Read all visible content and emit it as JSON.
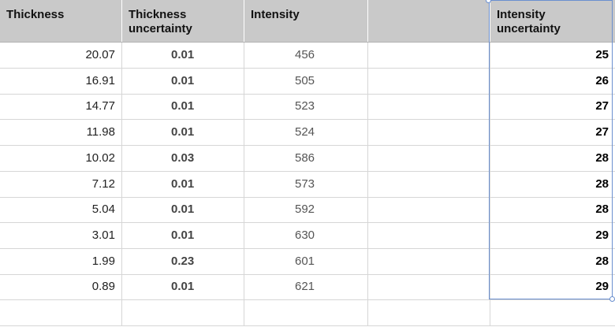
{
  "headers": [
    "Thickness",
    "Thickness\nuncertainty",
    "Intensity",
    "",
    "Intensity\nuncertainty"
  ],
  "rows": [
    {
      "thickness": "20.07",
      "thickness_unc": "0.01",
      "intensity": "456",
      "blank": "",
      "intensity_unc": "25"
    },
    {
      "thickness": "16.91",
      "thickness_unc": "0.01",
      "intensity": "505",
      "blank": "",
      "intensity_unc": "26"
    },
    {
      "thickness": "14.77",
      "thickness_unc": "0.01",
      "intensity": "523",
      "blank": "",
      "intensity_unc": "27"
    },
    {
      "thickness": "11.98",
      "thickness_unc": "0.01",
      "intensity": "524",
      "blank": "",
      "intensity_unc": "27"
    },
    {
      "thickness": "10.02",
      "thickness_unc": "0.03",
      "intensity": "586",
      "blank": "",
      "intensity_unc": "28"
    },
    {
      "thickness": "7.12",
      "thickness_unc": "0.01",
      "intensity": "573",
      "blank": "",
      "intensity_unc": "28"
    },
    {
      "thickness": "5.04",
      "thickness_unc": "0.01",
      "intensity": "592",
      "blank": "",
      "intensity_unc": "28"
    },
    {
      "thickness": "3.01",
      "thickness_unc": "0.01",
      "intensity": "630",
      "blank": "",
      "intensity_unc": "29"
    },
    {
      "thickness": "1.99",
      "thickness_unc": "0.23",
      "intensity": "601",
      "blank": "",
      "intensity_unc": "28"
    },
    {
      "thickness": "0.89",
      "thickness_unc": "0.01",
      "intensity": "621",
      "blank": "",
      "intensity_unc": "29"
    },
    {
      "thickness": "",
      "thickness_unc": "",
      "intensity": "",
      "blank": "",
      "intensity_unc": ""
    }
  ],
  "colors": {
    "header_bg": "#c9c9c9",
    "selection": "#6a8fcf",
    "grid": "#d6d6d6"
  }
}
